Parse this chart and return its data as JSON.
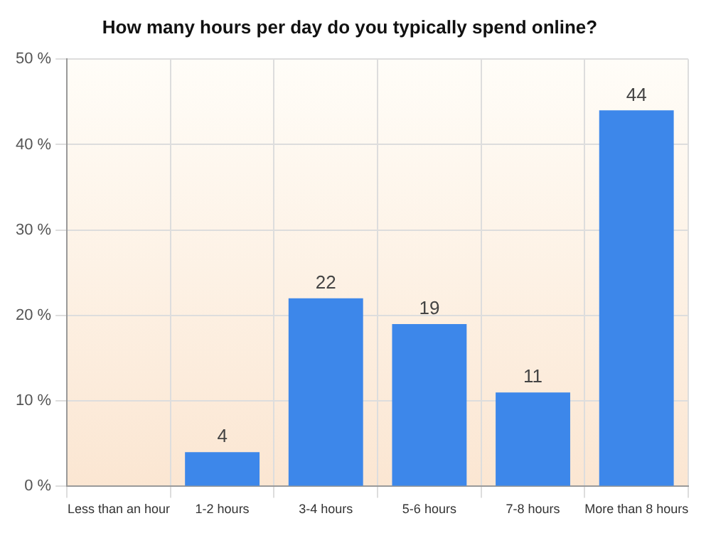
{
  "chart_data": {
    "type": "bar",
    "title": "How many hours per day do you typically spend online?",
    "categories": [
      "Less than an hour",
      "1-2 hours",
      "3-4 hours",
      "5-6 hours",
      "7-8 hours",
      "More than 8 hours"
    ],
    "values": [
      0,
      4,
      22,
      19,
      11,
      44
    ],
    "value_labels": [
      null,
      "4",
      "22",
      "19",
      "11",
      "44"
    ],
    "color": "#3d87ea",
    "ylim": [
      0,
      50
    ],
    "yticks": [
      {
        "value": 0,
        "label": "0 %"
      },
      {
        "value": 10,
        "label": "10 %"
      },
      {
        "value": 20,
        "label": "20 %"
      },
      {
        "value": 30,
        "label": "30 %"
      },
      {
        "value": 40,
        "label": "40 %"
      },
      {
        "value": 50,
        "label": "50 %"
      }
    ],
    "grid": true
  }
}
